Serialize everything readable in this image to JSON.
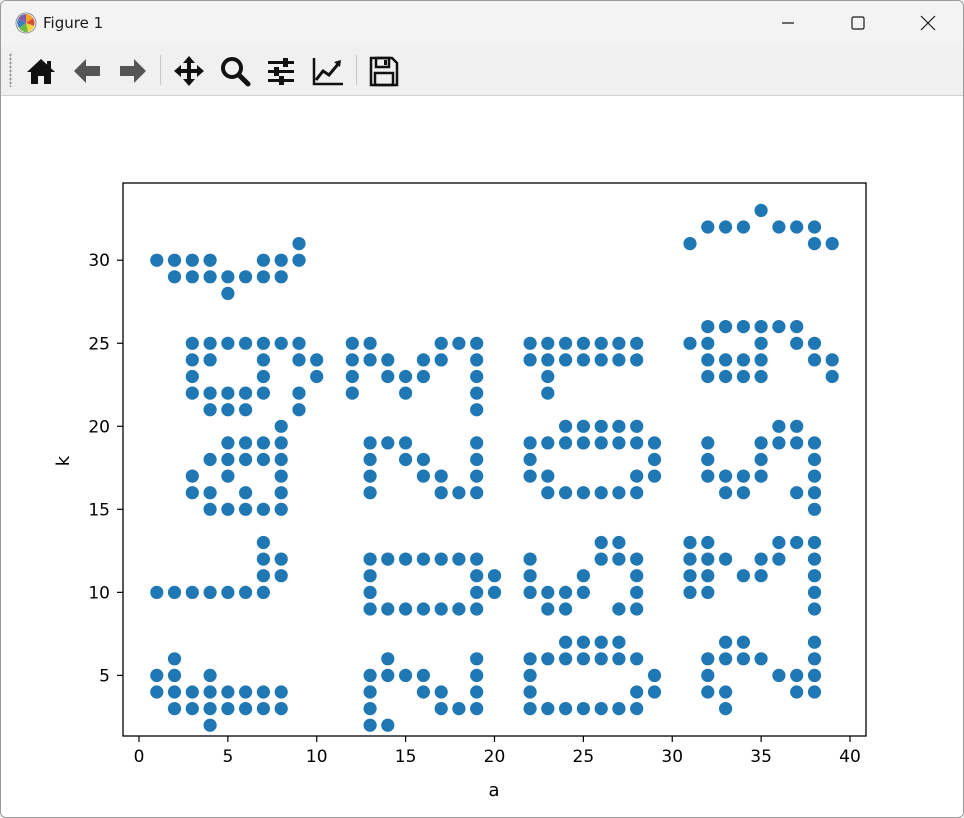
{
  "window": {
    "title": "Figure 1"
  },
  "toolbar": {
    "tools": [
      "home-icon",
      "back-icon",
      "forward-icon",
      "pan-icon",
      "zoom-icon",
      "configure-subplots-icon",
      "edit-axis-icon",
      "save-icon"
    ]
  },
  "colors": {
    "marker": "#1f77b4",
    "axes": "#000000",
    "titlebar": "#f3f3f3",
    "toolbar": "#f0f0f0"
  },
  "chart_data": {
    "type": "scatter",
    "title": "",
    "xlabel": "a",
    "ylabel": "k",
    "xlim": [
      -0.9,
      40.9
    ],
    "ylim": [
      1.35,
      34.65
    ],
    "xticks": [
      0,
      5,
      10,
      15,
      20,
      25,
      30,
      35,
      40
    ],
    "yticks": [
      5,
      10,
      15,
      20,
      25,
      30
    ],
    "grid": false,
    "legend": "none",
    "points": [
      [
        1,
        30
      ],
      [
        2,
        30
      ],
      [
        2,
        29
      ],
      [
        3,
        30
      ],
      [
        3,
        29
      ],
      [
        4,
        30
      ],
      [
        4,
        29
      ],
      [
        5,
        29
      ],
      [
        5,
        28
      ],
      [
        6,
        29
      ],
      [
        7,
        30
      ],
      [
        7,
        29
      ],
      [
        8,
        30
      ],
      [
        8,
        29
      ],
      [
        9,
        31
      ],
      [
        9,
        30
      ],
      [
        31,
        31
      ],
      [
        32,
        32
      ],
      [
        33,
        32
      ],
      [
        34,
        32
      ],
      [
        35,
        33
      ],
      [
        36,
        32
      ],
      [
        37,
        32
      ],
      [
        38,
        32
      ],
      [
        38,
        31
      ],
      [
        39,
        31
      ],
      [
        3,
        25
      ],
      [
        3,
        24
      ],
      [
        3,
        23
      ],
      [
        3,
        22
      ],
      [
        4,
        25
      ],
      [
        4,
        24
      ],
      [
        4,
        22
      ],
      [
        4,
        21
      ],
      [
        5,
        25
      ],
      [
        5,
        22
      ],
      [
        5,
        21
      ],
      [
        6,
        25
      ],
      [
        6,
        22
      ],
      [
        6,
        21
      ],
      [
        7,
        25
      ],
      [
        7,
        24
      ],
      [
        7,
        23
      ],
      [
        7,
        22
      ],
      [
        8,
        25
      ],
      [
        9,
        25
      ],
      [
        9,
        24
      ],
      [
        9,
        22
      ],
      [
        9,
        21
      ],
      [
        10,
        24
      ],
      [
        10,
        23
      ],
      [
        12,
        25
      ],
      [
        12,
        24
      ],
      [
        12,
        23
      ],
      [
        12,
        22
      ],
      [
        13,
        25
      ],
      [
        13,
        24
      ],
      [
        14,
        24
      ],
      [
        14,
        23
      ],
      [
        15,
        23
      ],
      [
        15,
        22
      ],
      [
        16,
        24
      ],
      [
        16,
        23
      ],
      [
        17,
        25
      ],
      [
        17,
        24
      ],
      [
        18,
        25
      ],
      [
        19,
        25
      ],
      [
        19,
        24
      ],
      [
        19,
        23
      ],
      [
        19,
        22
      ],
      [
        19,
        21
      ],
      [
        22,
        25
      ],
      [
        22,
        24
      ],
      [
        23,
        25
      ],
      [
        23,
        24
      ],
      [
        23,
        23
      ],
      [
        23,
        22
      ],
      [
        24,
        25
      ],
      [
        24,
        24
      ],
      [
        25,
        25
      ],
      [
        25,
        24
      ],
      [
        26,
        25
      ],
      [
        26,
        24
      ],
      [
        27,
        25
      ],
      [
        27,
        24
      ],
      [
        28,
        25
      ],
      [
        28,
        24
      ],
      [
        31,
        25
      ],
      [
        32,
        26
      ],
      [
        32,
        25
      ],
      [
        32,
        24
      ],
      [
        32,
        23
      ],
      [
        33,
        26
      ],
      [
        33,
        24
      ],
      [
        33,
        23
      ],
      [
        34,
        26
      ],
      [
        34,
        24
      ],
      [
        34,
        23
      ],
      [
        35,
        26
      ],
      [
        35,
        25
      ],
      [
        35,
        24
      ],
      [
        35,
        23
      ],
      [
        36,
        26
      ],
      [
        37,
        26
      ],
      [
        37,
        25
      ],
      [
        38,
        25
      ],
      [
        38,
        24
      ],
      [
        39,
        24
      ],
      [
        39,
        23
      ],
      [
        3,
        17
      ],
      [
        3,
        16
      ],
      [
        4,
        18
      ],
      [
        4,
        16
      ],
      [
        4,
        15
      ],
      [
        5,
        19
      ],
      [
        5,
        18
      ],
      [
        5,
        17
      ],
      [
        5,
        15
      ],
      [
        6,
        19
      ],
      [
        6,
        18
      ],
      [
        6,
        16
      ],
      [
        6,
        15
      ],
      [
        7,
        19
      ],
      [
        7,
        18
      ],
      [
        7,
        15
      ],
      [
        8,
        20
      ],
      [
        8,
        19
      ],
      [
        8,
        18
      ],
      [
        8,
        17
      ],
      [
        8,
        16
      ],
      [
        8,
        15
      ],
      [
        13,
        19
      ],
      [
        13,
        18
      ],
      [
        13,
        17
      ],
      [
        13,
        16
      ],
      [
        14,
        19
      ],
      [
        15,
        19
      ],
      [
        15,
        18
      ],
      [
        16,
        18
      ],
      [
        16,
        17
      ],
      [
        17,
        17
      ],
      [
        17,
        16
      ],
      [
        18,
        16
      ],
      [
        19,
        19
      ],
      [
        19,
        18
      ],
      [
        19,
        17
      ],
      [
        19,
        16
      ],
      [
        22,
        19
      ],
      [
        22,
        18
      ],
      [
        22,
        17
      ],
      [
        23,
        19
      ],
      [
        23,
        17
      ],
      [
        23,
        16
      ],
      [
        24,
        20
      ],
      [
        24,
        19
      ],
      [
        24,
        16
      ],
      [
        25,
        20
      ],
      [
        25,
        19
      ],
      [
        25,
        16
      ],
      [
        26,
        20
      ],
      [
        26,
        19
      ],
      [
        26,
        16
      ],
      [
        27,
        20
      ],
      [
        27,
        19
      ],
      [
        27,
        16
      ],
      [
        28,
        20
      ],
      [
        28,
        19
      ],
      [
        28,
        17
      ],
      [
        28,
        16
      ],
      [
        29,
        19
      ],
      [
        29,
        18
      ],
      [
        29,
        17
      ],
      [
        32,
        19
      ],
      [
        32,
        18
      ],
      [
        32,
        17
      ],
      [
        33,
        17
      ],
      [
        33,
        16
      ],
      [
        34,
        17
      ],
      [
        34,
        16
      ],
      [
        35,
        19
      ],
      [
        35,
        18
      ],
      [
        35,
        17
      ],
      [
        36,
        20
      ],
      [
        36,
        19
      ],
      [
        37,
        20
      ],
      [
        37,
        19
      ],
      [
        37,
        16
      ],
      [
        38,
        19
      ],
      [
        38,
        18
      ],
      [
        38,
        17
      ],
      [
        38,
        16
      ],
      [
        38,
        15
      ],
      [
        1,
        10
      ],
      [
        2,
        10
      ],
      [
        3,
        10
      ],
      [
        4,
        10
      ],
      [
        5,
        10
      ],
      [
        6,
        10
      ],
      [
        7,
        13
      ],
      [
        7,
        12
      ],
      [
        7,
        11
      ],
      [
        7,
        10
      ],
      [
        8,
        12
      ],
      [
        8,
        11
      ],
      [
        13,
        12
      ],
      [
        13,
        11
      ],
      [
        13,
        10
      ],
      [
        13,
        9
      ],
      [
        14,
        12
      ],
      [
        14,
        9
      ],
      [
        15,
        12
      ],
      [
        15,
        9
      ],
      [
        16,
        12
      ],
      [
        16,
        9
      ],
      [
        17,
        12
      ],
      [
        17,
        9
      ],
      [
        18,
        12
      ],
      [
        18,
        9
      ],
      [
        19,
        12
      ],
      [
        19,
        11
      ],
      [
        19,
        10
      ],
      [
        19,
        9
      ],
      [
        20,
        11
      ],
      [
        20,
        10
      ],
      [
        22,
        12
      ],
      [
        22,
        11
      ],
      [
        22,
        10
      ],
      [
        23,
        10
      ],
      [
        23,
        9
      ],
      [
        24,
        10
      ],
      [
        24,
        9
      ],
      [
        25,
        11
      ],
      [
        25,
        10
      ],
      [
        26,
        13
      ],
      [
        26,
        12
      ],
      [
        27,
        13
      ],
      [
        27,
        12
      ],
      [
        27,
        9
      ],
      [
        28,
        12
      ],
      [
        28,
        11
      ],
      [
        28,
        10
      ],
      [
        28,
        9
      ],
      [
        31,
        13
      ],
      [
        31,
        12
      ],
      [
        31,
        11
      ],
      [
        31,
        10
      ],
      [
        32,
        13
      ],
      [
        32,
        12
      ],
      [
        32,
        11
      ],
      [
        32,
        10
      ],
      [
        33,
        12
      ],
      [
        34,
        11
      ],
      [
        35,
        12
      ],
      [
        35,
        11
      ],
      [
        36,
        13
      ],
      [
        36,
        12
      ],
      [
        37,
        13
      ],
      [
        38,
        13
      ],
      [
        38,
        12
      ],
      [
        38,
        11
      ],
      [
        38,
        10
      ],
      [
        38,
        9
      ],
      [
        1,
        5
      ],
      [
        1,
        4
      ],
      [
        2,
        6
      ],
      [
        2,
        5
      ],
      [
        2,
        4
      ],
      [
        2,
        3
      ],
      [
        3,
        4
      ],
      [
        3,
        3
      ],
      [
        4,
        5
      ],
      [
        4,
        4
      ],
      [
        4,
        3
      ],
      [
        4,
        2
      ],
      [
        5,
        4
      ],
      [
        5,
        3
      ],
      [
        6,
        4
      ],
      [
        6,
        3
      ],
      [
        7,
        4
      ],
      [
        7,
        3
      ],
      [
        8,
        4
      ],
      [
        8,
        3
      ],
      [
        13,
        5
      ],
      [
        13,
        4
      ],
      [
        13,
        3
      ],
      [
        13,
        2
      ],
      [
        14,
        6
      ],
      [
        14,
        5
      ],
      [
        14,
        2
      ],
      [
        15,
        5
      ],
      [
        16,
        5
      ],
      [
        16,
        4
      ],
      [
        17,
        4
      ],
      [
        17,
        3
      ],
      [
        18,
        3
      ],
      [
        19,
        6
      ],
      [
        19,
        5
      ],
      [
        19,
        4
      ],
      [
        19,
        3
      ],
      [
        22,
        6
      ],
      [
        22,
        5
      ],
      [
        22,
        4
      ],
      [
        22,
        3
      ],
      [
        23,
        6
      ],
      [
        23,
        3
      ],
      [
        24,
        7
      ],
      [
        24,
        6
      ],
      [
        24,
        3
      ],
      [
        25,
        7
      ],
      [
        25,
        6
      ],
      [
        25,
        3
      ],
      [
        26,
        7
      ],
      [
        26,
        6
      ],
      [
        26,
        3
      ],
      [
        27,
        7
      ],
      [
        27,
        6
      ],
      [
        27,
        3
      ],
      [
        28,
        6
      ],
      [
        28,
        4
      ],
      [
        28,
        3
      ],
      [
        29,
        5
      ],
      [
        29,
        4
      ],
      [
        32,
        6
      ],
      [
        32,
        5
      ],
      [
        32,
        4
      ],
      [
        33,
        7
      ],
      [
        33,
        6
      ],
      [
        33,
        4
      ],
      [
        33,
        3
      ],
      [
        34,
        7
      ],
      [
        34,
        6
      ],
      [
        35,
        6
      ],
      [
        36,
        5
      ],
      [
        37,
        5
      ],
      [
        37,
        4
      ],
      [
        38,
        7
      ],
      [
        38,
        6
      ],
      [
        38,
        5
      ],
      [
        38,
        4
      ]
    ]
  }
}
